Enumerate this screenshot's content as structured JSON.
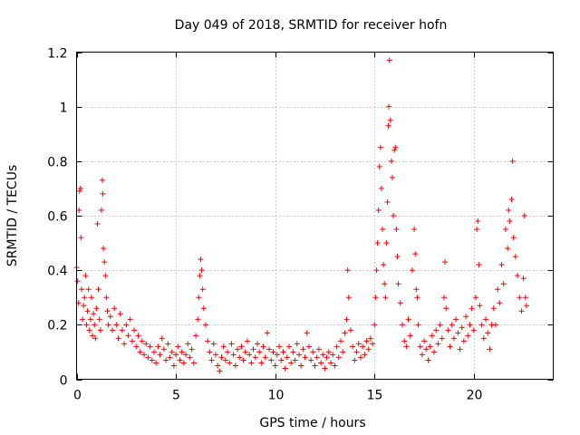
{
  "chart_data": {
    "type": "scatter",
    "title": "Day 049 of 2018, SRMTID for receiver hofn",
    "xlabel": "GPS time / hours",
    "ylabel": "SRMTID / TECUs",
    "xlim": [
      0,
      24
    ],
    "ylim": [
      0,
      1.2
    ],
    "x_ticks": [
      0,
      5,
      10,
      15,
      20
    ],
    "x_tick_labels": [
      "0",
      "5",
      "10",
      "15",
      "20"
    ],
    "y_ticks": [
      0,
      0.2,
      0.4,
      0.6,
      0.8,
      1.0,
      1.2
    ],
    "y_tick_labels": [
      "0",
      "0.2",
      "0.4",
      "0.6",
      "0.8",
      "1",
      "1.2"
    ],
    "grid": true,
    "marker": "+",
    "color": "#ff0000",
    "series": [
      {
        "name": "SRMTID",
        "points": [
          [
            0.0,
            0.41
          ],
          [
            0.05,
            0.36
          ],
          [
            0.1,
            0.28
          ],
          [
            0.12,
            0.62
          ],
          [
            0.15,
            0.69
          ],
          [
            0.2,
            0.7
          ],
          [
            0.22,
            0.52
          ],
          [
            0.25,
            0.33
          ],
          [
            0.3,
            0.22
          ],
          [
            0.35,
            0.27
          ],
          [
            0.4,
            0.3
          ],
          [
            0.45,
            0.38
          ],
          [
            0.5,
            0.2
          ],
          [
            0.55,
            0.25
          ],
          [
            0.6,
            0.33
          ],
          [
            0.65,
            0.18
          ],
          [
            0.7,
            0.22
          ],
          [
            0.75,
            0.3
          ],
          [
            0.8,
            0.16
          ],
          [
            0.85,
            0.24
          ],
          [
            0.9,
            0.2
          ],
          [
            0.95,
            0.15
          ],
          [
            1.0,
            0.26
          ],
          [
            1.05,
            0.57
          ],
          [
            1.1,
            0.33
          ],
          [
            1.15,
            0.22
          ],
          [
            1.2,
            0.18
          ],
          [
            1.25,
            0.62
          ],
          [
            1.3,
            0.73
          ],
          [
            1.32,
            0.68
          ],
          [
            1.35,
            0.48
          ],
          [
            1.4,
            0.43
          ],
          [
            1.45,
            0.38
          ],
          [
            1.5,
            0.3
          ],
          [
            1.55,
            0.25
          ],
          [
            1.6,
            0.2
          ],
          [
            1.7,
            0.23
          ],
          [
            1.8,
            0.18
          ],
          [
            1.9,
            0.26
          ],
          [
            2.0,
            0.2
          ],
          [
            2.1,
            0.15
          ],
          [
            2.2,
            0.24
          ],
          [
            2.3,
            0.18
          ],
          [
            2.4,
            0.13
          ],
          [
            2.5,
            0.2
          ],
          [
            2.6,
            0.16
          ],
          [
            2.7,
            0.22
          ],
          [
            2.8,
            0.14
          ],
          [
            2.9,
            0.18
          ],
          [
            3.0,
            0.12
          ],
          [
            3.1,
            0.16
          ],
          [
            3.2,
            0.1
          ],
          [
            3.3,
            0.14
          ],
          [
            3.4,
            0.09
          ],
          [
            3.5,
            0.13
          ],
          [
            3.6,
            0.08
          ],
          [
            3.7,
            0.12
          ],
          [
            3.8,
            0.07
          ],
          [
            3.9,
            0.1
          ],
          [
            4.0,
            0.06
          ],
          [
            4.1,
            0.12
          ],
          [
            4.2,
            0.09
          ],
          [
            4.3,
            0.15
          ],
          [
            4.4,
            0.11
          ],
          [
            4.5,
            0.07
          ],
          [
            4.6,
            0.13
          ],
          [
            4.7,
            0.08
          ],
          [
            4.8,
            0.1
          ],
          [
            4.9,
            0.05
          ],
          [
            5.0,
            0.09
          ],
          [
            5.1,
            0.12
          ],
          [
            5.2,
            0.07
          ],
          [
            5.3,
            0.1
          ],
          [
            5.4,
            0.06
          ],
          [
            5.5,
            0.09
          ],
          [
            5.6,
            0.13
          ],
          [
            5.7,
            0.08
          ],
          [
            5.8,
            0.11
          ],
          [
            5.9,
            0.06
          ],
          [
            6.0,
            0.16
          ],
          [
            6.1,
            0.22
          ],
          [
            6.15,
            0.3
          ],
          [
            6.2,
            0.38
          ],
          [
            6.25,
            0.44
          ],
          [
            6.3,
            0.4
          ],
          [
            6.35,
            0.33
          ],
          [
            6.4,
            0.26
          ],
          [
            6.5,
            0.2
          ],
          [
            6.6,
            0.14
          ],
          [
            6.7,
            0.1
          ],
          [
            6.8,
            0.07
          ],
          [
            6.9,
            0.13
          ],
          [
            7.0,
            0.09
          ],
          [
            7.1,
            0.05
          ],
          [
            7.2,
            0.03
          ],
          [
            7.3,
            0.08
          ],
          [
            7.4,
            0.12
          ],
          [
            7.5,
            0.07
          ],
          [
            7.6,
            0.1
          ],
          [
            7.7,
            0.06
          ],
          [
            7.8,
            0.13
          ],
          [
            7.9,
            0.09
          ],
          [
            8.0,
            0.05
          ],
          [
            8.1,
            0.11
          ],
          [
            8.2,
            0.08
          ],
          [
            8.3,
            0.12
          ],
          [
            8.4,
            0.07
          ],
          [
            8.5,
            0.1
          ],
          [
            8.6,
            0.14
          ],
          [
            8.7,
            0.09
          ],
          [
            8.8,
            0.06
          ],
          [
            8.9,
            0.11
          ],
          [
            9.0,
            0.08
          ],
          [
            9.1,
            0.13
          ],
          [
            9.2,
            0.1
          ],
          [
            9.3,
            0.06
          ],
          [
            9.4,
            0.12
          ],
          [
            9.5,
            0.08
          ],
          [
            9.6,
            0.17
          ],
          [
            9.7,
            0.11
          ],
          [
            9.8,
            0.07
          ],
          [
            9.9,
            0.1
          ],
          [
            10.0,
            0.05
          ],
          [
            10.1,
            0.09
          ],
          [
            10.2,
            0.12
          ],
          [
            10.3,
            0.07
          ],
          [
            10.4,
            0.1
          ],
          [
            10.5,
            0.04
          ],
          [
            10.6,
            0.08
          ],
          [
            10.7,
            0.12
          ],
          [
            10.8,
            0.06
          ],
          [
            10.9,
            0.1
          ],
          [
            11.0,
            0.07
          ],
          [
            11.1,
            0.13
          ],
          [
            11.2,
            0.09
          ],
          [
            11.3,
            0.05
          ],
          [
            11.4,
            0.11
          ],
          [
            11.5,
            0.08
          ],
          [
            11.6,
            0.17
          ],
          [
            11.7,
            0.12
          ],
          [
            11.8,
            0.07
          ],
          [
            11.9,
            0.1
          ],
          [
            12.0,
            0.05
          ],
          [
            12.1,
            0.08
          ],
          [
            12.2,
            0.11
          ],
          [
            12.3,
            0.06
          ],
          [
            12.4,
            0.09
          ],
          [
            12.5,
            0.04
          ],
          [
            12.6,
            0.08
          ],
          [
            12.7,
            0.1
          ],
          [
            12.8,
            0.06
          ],
          [
            12.9,
            0.09
          ],
          [
            13.0,
            0.05
          ],
          [
            13.1,
            0.12
          ],
          [
            13.2,
            0.08
          ],
          [
            13.3,
            0.14
          ],
          [
            13.4,
            0.1
          ],
          [
            13.5,
            0.17
          ],
          [
            13.6,
            0.22
          ],
          [
            13.65,
            0.4
          ],
          [
            13.7,
            0.3
          ],
          [
            13.8,
            0.18
          ],
          [
            13.9,
            0.12
          ],
          [
            14.0,
            0.07
          ],
          [
            14.1,
            0.1
          ],
          [
            14.2,
            0.13
          ],
          [
            14.3,
            0.08
          ],
          [
            14.4,
            0.12
          ],
          [
            14.5,
            0.09
          ],
          [
            14.6,
            0.14
          ],
          [
            14.7,
            0.11
          ],
          [
            14.8,
            0.15
          ],
          [
            14.9,
            0.13
          ],
          [
            15.0,
            0.2
          ],
          [
            15.05,
            0.3
          ],
          [
            15.1,
            0.4
          ],
          [
            15.15,
            0.5
          ],
          [
            15.2,
            0.62
          ],
          [
            15.25,
            0.78
          ],
          [
            15.3,
            0.85
          ],
          [
            15.35,
            0.7
          ],
          [
            15.4,
            0.55
          ],
          [
            15.45,
            0.42
          ],
          [
            15.5,
            0.35
          ],
          [
            15.55,
            0.3
          ],
          [
            15.6,
            0.5
          ],
          [
            15.65,
            0.65
          ],
          [
            15.7,
            0.93
          ],
          [
            15.72,
            1.0
          ],
          [
            15.75,
            1.17
          ],
          [
            15.8,
            0.95
          ],
          [
            15.85,
            0.8
          ],
          [
            15.9,
            0.74
          ],
          [
            15.95,
            0.6
          ],
          [
            16.0,
            0.84
          ],
          [
            16.05,
            0.85
          ],
          [
            16.1,
            0.55
          ],
          [
            16.15,
            0.45
          ],
          [
            16.2,
            0.35
          ],
          [
            16.3,
            0.28
          ],
          [
            16.4,
            0.2
          ],
          [
            16.5,
            0.14
          ],
          [
            16.6,
            0.12
          ],
          [
            16.7,
            0.22
          ],
          [
            16.8,
            0.16
          ],
          [
            16.9,
            0.4
          ],
          [
            17.0,
            0.55
          ],
          [
            17.05,
            0.46
          ],
          [
            17.1,
            0.33
          ],
          [
            17.15,
            0.3
          ],
          [
            17.2,
            0.2
          ],
          [
            17.3,
            0.12
          ],
          [
            17.4,
            0.09
          ],
          [
            17.5,
            0.14
          ],
          [
            17.6,
            0.11
          ],
          [
            17.7,
            0.07
          ],
          [
            17.8,
            0.12
          ],
          [
            17.9,
            0.16
          ],
          [
            18.0,
            0.1
          ],
          [
            18.1,
            0.18
          ],
          [
            18.2,
            0.13
          ],
          [
            18.3,
            0.2
          ],
          [
            18.4,
            0.15
          ],
          [
            18.5,
            0.3
          ],
          [
            18.55,
            0.43
          ],
          [
            18.6,
            0.26
          ],
          [
            18.7,
            0.18
          ],
          [
            18.8,
            0.12
          ],
          [
            18.9,
            0.2
          ],
          [
            19.0,
            0.15
          ],
          [
            19.1,
            0.22
          ],
          [
            19.2,
            0.17
          ],
          [
            19.3,
            0.11
          ],
          [
            19.4,
            0.19
          ],
          [
            19.5,
            0.14
          ],
          [
            19.6,
            0.23
          ],
          [
            19.7,
            0.16
          ],
          [
            19.8,
            0.2
          ],
          [
            19.9,
            0.26
          ],
          [
            20.0,
            0.18
          ],
          [
            20.1,
            0.3
          ],
          [
            20.15,
            0.55
          ],
          [
            20.2,
            0.58
          ],
          [
            20.25,
            0.42
          ],
          [
            20.3,
            0.27
          ],
          [
            20.4,
            0.2
          ],
          [
            20.5,
            0.15
          ],
          [
            20.6,
            0.22
          ],
          [
            20.7,
            0.17
          ],
          [
            20.8,
            0.11
          ],
          [
            20.9,
            0.2
          ],
          [
            21.0,
            0.26
          ],
          [
            21.1,
            0.2
          ],
          [
            21.2,
            0.33
          ],
          [
            21.3,
            0.28
          ],
          [
            21.4,
            0.42
          ],
          [
            21.5,
            0.35
          ],
          [
            21.6,
            0.55
          ],
          [
            21.7,
            0.48
          ],
          [
            21.75,
            0.62
          ],
          [
            21.8,
            0.58
          ],
          [
            21.9,
            0.66
          ],
          [
            21.95,
            0.8
          ],
          [
            22.0,
            0.52
          ],
          [
            22.1,
            0.45
          ],
          [
            22.2,
            0.38
          ],
          [
            22.3,
            0.3
          ],
          [
            22.4,
            0.25
          ],
          [
            22.5,
            0.37
          ],
          [
            22.55,
            0.6
          ],
          [
            22.6,
            0.3
          ],
          [
            22.65,
            0.27
          ]
        ]
      }
    ]
  }
}
